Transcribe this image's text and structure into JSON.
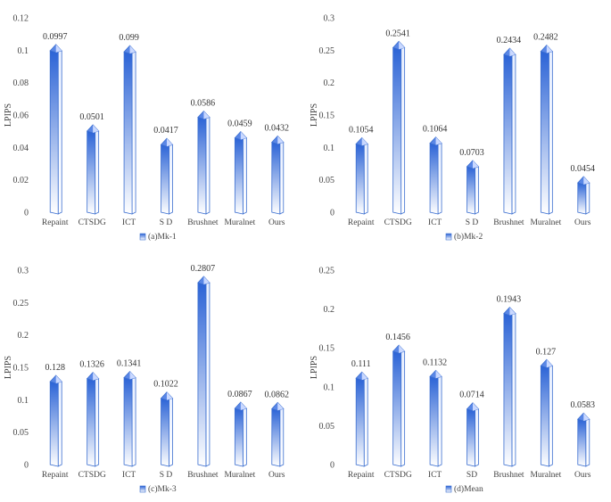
{
  "chart_data": [
    {
      "type": "bar",
      "ylabel": "LPIPS",
      "ylim": [
        0,
        0.12
      ],
      "yticks": [
        "0",
        "0.02",
        "0.04",
        "0.06",
        "0.08",
        "0.1",
        "0.12"
      ],
      "categories": [
        "Repaint",
        "CTSDG",
        "ICT",
        "S D",
        "Brushnet",
        "Muralnet",
        "Ours"
      ],
      "values": [
        0.0997,
        0.0501,
        0.099,
        0.0417,
        0.0586,
        0.0459,
        0.0432
      ],
      "labels": [
        "0.0997",
        "0.0501",
        "0.099",
        "0.0417",
        "0.0586",
        "0.0459",
        "0.0432"
      ],
      "legend": "(a)Mk-1",
      "colors": {
        "light": "#ffffff",
        "dark": "#2b63d6",
        "edge": "#3c6fd0"
      }
    },
    {
      "type": "bar",
      "ylabel": "LPIPS",
      "ylim": [
        0,
        0.3
      ],
      "yticks": [
        "0",
        "0.05",
        "0.1",
        "0.15",
        "0.2",
        "0.25",
        "0.3"
      ],
      "categories": [
        "Repaint",
        "CTSDG",
        "ICT",
        "S D",
        "Brushnet",
        "Muralnet",
        "Ours"
      ],
      "values": [
        0.1054,
        0.2541,
        0.1064,
        0.0703,
        0.2434,
        0.2482,
        0.0454
      ],
      "labels": [
        "0.1054",
        "0.2541",
        "0.1064",
        "0.0703",
        "0.2434",
        "0.2482",
        "0.0454"
      ],
      "legend": "(b)Mk-2",
      "colors": {
        "light": "#ffffff",
        "dark": "#2b63d6",
        "edge": "#3c6fd0"
      }
    },
    {
      "type": "bar",
      "ylabel": "LPIPS",
      "ylim": [
        0,
        0.3
      ],
      "yticks": [
        "0",
        "0.05",
        "0.1",
        "0.15",
        "0.2",
        "0.25",
        "0.3"
      ],
      "categories": [
        "Repaint",
        "CTSDG",
        "ICT",
        "S D",
        "Brushnet",
        "Muralnet",
        "Ours"
      ],
      "values": [
        0.128,
        0.1326,
        0.1341,
        0.1022,
        0.2807,
        0.0867,
        0.0862
      ],
      "labels": [
        "0.128",
        "0.1326",
        "0.1341",
        "0.1022",
        "0.2807",
        "0.0867",
        "0.0862"
      ],
      "legend": "(c)Mk-3",
      "colors": {
        "light": "#ffffff",
        "dark": "#2b63d6",
        "edge": "#3c6fd0"
      }
    },
    {
      "type": "bar",
      "ylabel": "LPIPS",
      "ylim": [
        0,
        0.25
      ],
      "yticks": [
        "0",
        "0.05",
        "0.1",
        "0.15",
        "0.2",
        "0.25"
      ],
      "categories": [
        "Repaint",
        "CTSDG",
        "ICT",
        "SD",
        "Brushnet",
        "Muralnet",
        "Ours"
      ],
      "values": [
        0.111,
        0.1456,
        0.1132,
        0.0714,
        0.1943,
        0.127,
        0.0583
      ],
      "labels": [
        "0.111",
        "0.1456",
        "0.1132",
        "0.0714",
        "0.1943",
        "0.127",
        "0.0583"
      ],
      "legend": "(d)Mean",
      "colors": {
        "light": "#ffffff",
        "dark": "#2b63d6",
        "edge": "#3c6fd0"
      }
    }
  ]
}
